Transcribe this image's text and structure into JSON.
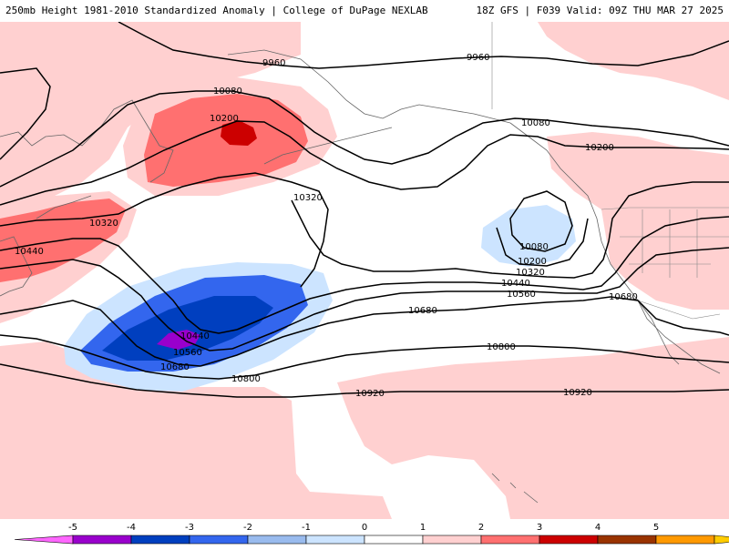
{
  "header": {
    "left": "250mb Height 1981-2010 Standardized Anomaly | College of DuPage NEXLAB",
    "right": "18Z GFS | F039 Valid: 09Z THU MAR 27 2025"
  },
  "contours": {
    "labels": [
      "9960",
      "9960",
      "10080",
      "10080",
      "10080",
      "10200",
      "10200",
      "10200",
      "10320",
      "10320",
      "10320",
      "10440",
      "10440",
      "10440",
      "10560",
      "10560",
      "10680",
      "10680",
      "10680",
      "10800",
      "10800",
      "10920",
      "10920"
    ]
  },
  "colorbar": {
    "ticks": [
      "-5",
      "-4",
      "-3",
      "-2",
      "-1",
      "0",
      "1",
      "2",
      "3",
      "4",
      "5"
    ],
    "colors": [
      "#ff66ff",
      "#9900cc",
      "#003fbf",
      "#3366ee",
      "#99bbee",
      "#cce4ff",
      "#ffffff",
      "#ffd0d0",
      "#ff7070",
      "#cc0000",
      "#993300",
      "#ff9900",
      "#ffcc00"
    ]
  }
}
